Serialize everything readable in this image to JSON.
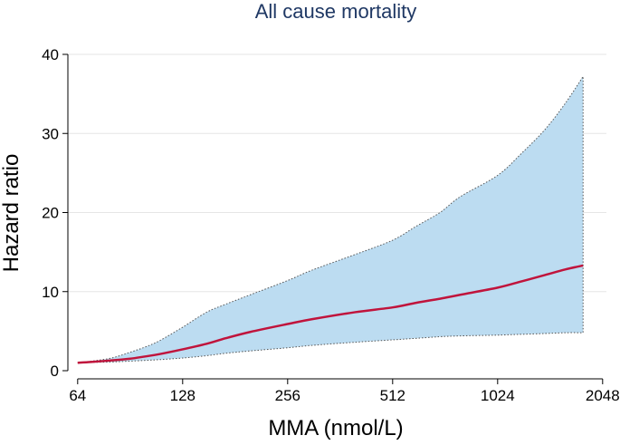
{
  "chart_data": {
    "type": "area",
    "title": "All cause mortality",
    "xlabel": "MMA (nmol/L)",
    "ylabel": "Hazard ratio",
    "x_scale": "log2",
    "xlim": [
      60,
      2100
    ],
    "ylim": [
      0,
      40
    ],
    "x_ticks": [
      64,
      128,
      256,
      512,
      1024,
      2048
    ],
    "y_ticks": [
      0,
      10,
      20,
      30,
      40
    ],
    "grid": true,
    "legend": "none",
    "colors": {
      "line": "#c0143c",
      "band": "#bcdcf1",
      "title": "#1f3864"
    },
    "series": [
      {
        "x": [
          64,
          70,
          80,
          90,
          100,
          110,
          128,
          150,
          170,
          200,
          256,
          300,
          400,
          512,
          600,
          700,
          800,
          1024,
          1200,
          1400,
          1600,
          1800
        ],
        "y": [
          1.0,
          1.1,
          1.3,
          1.5,
          1.8,
          2.1,
          2.7,
          3.4,
          4.1,
          4.9,
          5.9,
          6.5,
          7.4,
          8.0,
          8.6,
          9.1,
          9.6,
          10.5,
          11.3,
          12.1,
          12.8,
          13.3
        ],
        "lower": [
          1.0,
          1.05,
          1.1,
          1.2,
          1.3,
          1.4,
          1.6,
          1.9,
          2.2,
          2.5,
          2.9,
          3.2,
          3.6,
          3.9,
          4.1,
          4.3,
          4.4,
          4.5,
          4.6,
          4.7,
          4.8,
          4.8
        ],
        "upper": [
          1.0,
          1.2,
          1.6,
          2.3,
          3.0,
          3.8,
          5.5,
          7.4,
          8.4,
          9.6,
          11.4,
          12.7,
          14.7,
          16.5,
          18.3,
          20.0,
          22.0,
          24.7,
          27.5,
          30.5,
          33.8,
          37.2
        ]
      }
    ]
  }
}
